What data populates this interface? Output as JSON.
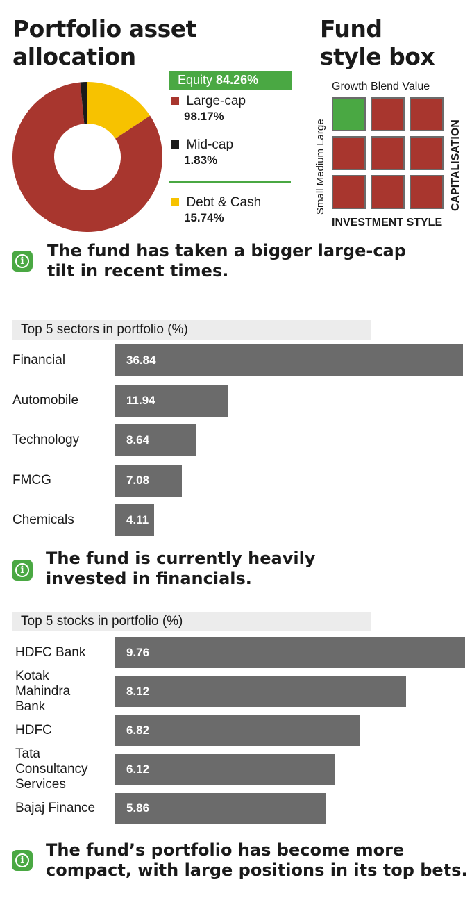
{
  "allocation": {
    "title_line1": "Portfolio asset",
    "title_line2": "allocation",
    "equity_label": "Equity",
    "equity_value": "84.26%",
    "legend": [
      {
        "label": "Large-cap",
        "value": "98.17%",
        "color": "#a8362e"
      },
      {
        "label": "Mid-cap",
        "value": "1.83%",
        "color": "#1a1a1a"
      },
      {
        "label": "Debt & Cash",
        "value": "15.74%",
        "color": "#f7c200"
      }
    ]
  },
  "stylebox": {
    "title_line1": "Fund",
    "title_line2": "style box",
    "columns": [
      "Growth",
      "Blend",
      "Value"
    ],
    "rows": [
      "Large",
      "Medium",
      "Small"
    ],
    "x_axis": "INVESTMENT STYLE",
    "y_axis": "CAPITALISATION",
    "highlight": {
      "row": "Large",
      "column": "Growth"
    },
    "highlight_color": "#4aa843",
    "cell_color": "#a8362e"
  },
  "notes": {
    "note1": "The fund has taken a bigger large-cap tilt in recent times.",
    "note2": "The fund is currently heavily invested in financials.",
    "note3": "The fund’s portfolio has become more compact, with large positions in its top bets."
  },
  "colors": {
    "accent": "#4aa843",
    "bar": "#6b6b6b",
    "header_bg": "#ececec"
  },
  "chart_data": [
    {
      "type": "pie",
      "categories": [
        "Large-cap",
        "Mid-cap",
        "Debt & Cash"
      ],
      "values": [
        82.72,
        1.54,
        15.74
      ],
      "colors": [
        "#a8362e",
        "#1a1a1a",
        "#f7c200"
      ],
      "title": "Portfolio asset allocation"
    },
    {
      "type": "bar",
      "orientation": "horizontal",
      "title": "Top 5 sectors in portfolio (%)",
      "categories": [
        "Financial",
        "Automobile",
        "Technology",
        "FMCG",
        "Chemicals"
      ],
      "values": [
        36.84,
        11.94,
        8.64,
        7.08,
        4.11
      ],
      "labels": [
        "36.84",
        "11.94",
        "8.64",
        "7.08",
        "4.11"
      ],
      "xlim": [
        0,
        36.84
      ]
    },
    {
      "type": "bar",
      "orientation": "horizontal",
      "title": "Top 5 stocks in portfolio (%)",
      "categories": [
        "HDFC Bank",
        "Kotak Mahindra Bank",
        "HDFC",
        "Tata Consultancy Services",
        "Bajaj Finance"
      ],
      "category_lines": [
        [
          "HDFC Bank"
        ],
        [
          "Kotak",
          "Mahindra",
          "Bank"
        ],
        [
          "HDFC"
        ],
        [
          "Tata",
          "Consultancy",
          "Services"
        ],
        [
          "Bajaj Finance"
        ]
      ],
      "values": [
        9.76,
        8.12,
        6.82,
        6.12,
        5.86
      ],
      "labels": [
        "9.76",
        "8.12",
        "6.82",
        "6.12",
        "5.86"
      ],
      "xlim": [
        0,
        9.76
      ]
    }
  ]
}
